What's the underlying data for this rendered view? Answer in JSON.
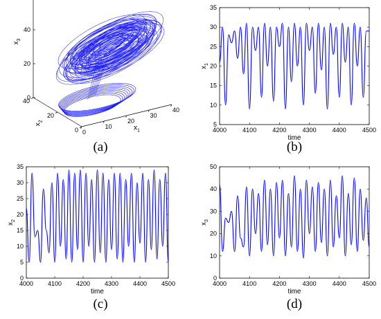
{
  "chart_data": [
    {
      "id": "a",
      "type": "line",
      "projection": "3d",
      "caption": "(a)",
      "axes": {
        "x1": {
          "label": "x",
          "sub": "1",
          "range": [
            0,
            40
          ],
          "ticks": [
            0,
            10,
            20,
            30,
            40
          ]
        },
        "x2": {
          "label": "x",
          "sub": "2",
          "range": [
            0,
            40
          ],
          "ticks": [
            0,
            20,
            40
          ]
        },
        "x3": {
          "label": "x",
          "sub": "3",
          "range": [
            0,
            60
          ],
          "ticks": [
            0,
            20,
            40,
            60
          ]
        }
      },
      "color": "#0000ff"
    },
    {
      "id": "b",
      "type": "line",
      "caption": "(b)",
      "xlabel": "time",
      "ylabel": "x",
      "ylabel_sub": "1",
      "xlim": [
        4000,
        4500
      ],
      "ylim": [
        5,
        35
      ],
      "xticks": [
        4000,
        4100,
        4200,
        4300,
        4400,
        4500
      ],
      "yticks": [
        5,
        10,
        15,
        20,
        25,
        30,
        35
      ],
      "series": [
        {
          "color": "#0000ff",
          "x": [
            4000,
            4010,
            4020,
            4030,
            4040,
            4050,
            4060,
            4070,
            4080,
            4090,
            4100,
            4110,
            4120,
            4130,
            4140,
            4150,
            4160,
            4170,
            4180,
            4190,
            4200,
            4210,
            4220,
            4230,
            4240,
            4250,
            4260,
            4270,
            4280,
            4290,
            4300,
            4310,
            4320,
            4330,
            4340,
            4350,
            4360,
            4370,
            4380,
            4390,
            4400,
            4410,
            4420,
            4430,
            4440,
            4450,
            4460,
            4470,
            4480,
            4490,
            4500
          ],
          "y": [
            21,
            30,
            10,
            28,
            26,
            29,
            22,
            30,
            18,
            31,
            9,
            30,
            24,
            30,
            12,
            31,
            20,
            30,
            11,
            30,
            25,
            31,
            9,
            30,
            16,
            31,
            20,
            30,
            10,
            31,
            24,
            30,
            13,
            31,
            19,
            30,
            9,
            31,
            23,
            30,
            12,
            31,
            21,
            30,
            10,
            31,
            20,
            30,
            12,
            29,
            29
          ]
        }
      ]
    },
    {
      "id": "c",
      "type": "line",
      "caption": "(c)",
      "xlabel": "time",
      "ylabel": "x",
      "ylabel_sub": "2",
      "xlim": [
        4000,
        4500
      ],
      "ylim": [
        0,
        35
      ],
      "xticks": [
        4000,
        4100,
        4200,
        4300,
        4400,
        4500
      ],
      "yticks": [
        0,
        5,
        10,
        15,
        20,
        25,
        30,
        35
      ],
      "series": [
        {
          "color": "#0000ff",
          "x": [
            4000,
            4010,
            4020,
            4030,
            4040,
            4050,
            4060,
            4070,
            4080,
            4090,
            4100,
            4110,
            4120,
            4130,
            4140,
            4150,
            4160,
            4170,
            4180,
            4190,
            4200,
            4210,
            4220,
            4230,
            4240,
            4250,
            4260,
            4270,
            4280,
            4290,
            4300,
            4310,
            4320,
            4330,
            4340,
            4350,
            4360,
            4370,
            4380,
            4390,
            4400,
            4410,
            4420,
            4430,
            4440,
            4450,
            4460,
            4470,
            4480,
            4490,
            4500
          ],
          "y": [
            22,
            5,
            33,
            13,
            15,
            5,
            28,
            15,
            8,
            30,
            5,
            33,
            10,
            31,
            6,
            34,
            5,
            33,
            9,
            34,
            5,
            33,
            10,
            31,
            5,
            34,
            8,
            33,
            5,
            31,
            9,
            33,
            6,
            33,
            5,
            31,
            10,
            33,
            5,
            30,
            11,
            33,
            5,
            31,
            9,
            34,
            6,
            31,
            10,
            33,
            5
          ]
        }
      ]
    },
    {
      "id": "d",
      "type": "line",
      "caption": "(d)",
      "xlabel": "time",
      "ylabel": "x",
      "ylabel_sub": "3",
      "xlim": [
        4000,
        4500
      ],
      "ylim": [
        0,
        50
      ],
      "xticks": [
        4000,
        4100,
        4200,
        4300,
        4400,
        4500
      ],
      "yticks": [
        0,
        10,
        20,
        30,
        40,
        50
      ],
      "series": [
        {
          "color": "#0000ff",
          "x": [
            4000,
            4010,
            4020,
            4030,
            4040,
            4050,
            4060,
            4070,
            4080,
            4090,
            4100,
            4110,
            4120,
            4130,
            4140,
            4150,
            4160,
            4170,
            4180,
            4190,
            4200,
            4210,
            4220,
            4230,
            4240,
            4250,
            4260,
            4270,
            4280,
            4290,
            4300,
            4310,
            4320,
            4330,
            4340,
            4350,
            4360,
            4370,
            4380,
            4390,
            4400,
            4410,
            4420,
            4430,
            4440,
            4450,
            4460,
            4470,
            4480,
            4490,
            4500
          ],
          "y": [
            42,
            12,
            27,
            25,
            30,
            12,
            37,
            18,
            14,
            41,
            10,
            40,
            20,
            38,
            12,
            44,
            15,
            40,
            10,
            43,
            18,
            44,
            10,
            38,
            14,
            46,
            12,
            40,
            9,
            44,
            20,
            41,
            12,
            43,
            16,
            40,
            10,
            44,
            14,
            37,
            18,
            46,
            10,
            38,
            15,
            45,
            12,
            40,
            17,
            36,
            14
          ]
        }
      ]
    }
  ]
}
